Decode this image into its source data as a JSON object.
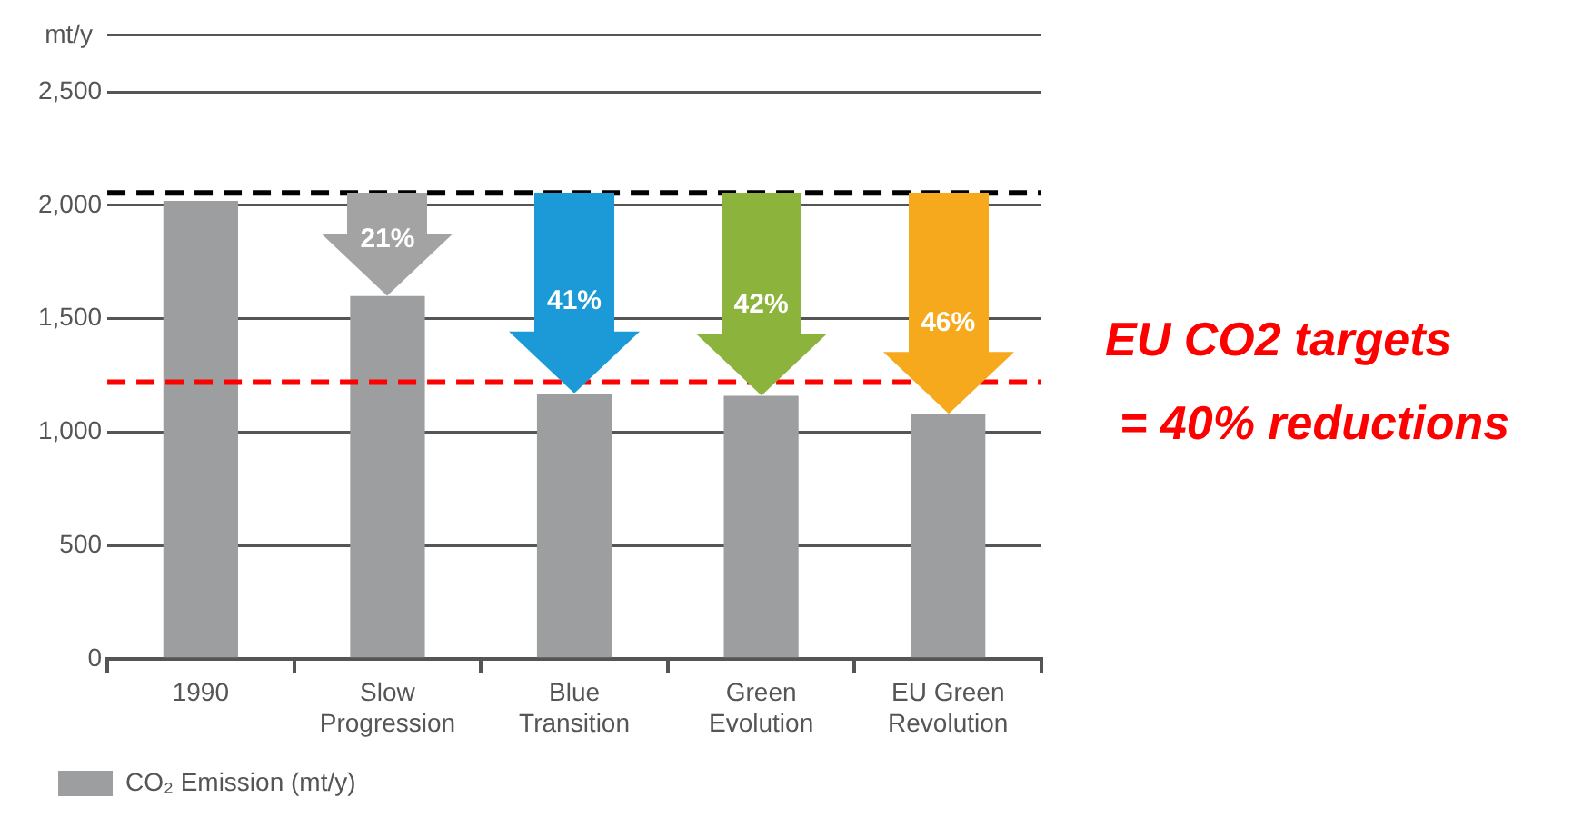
{
  "chart_data": {
    "type": "bar",
    "ylabel": "mt/y",
    "categories": [
      "1990",
      "Slow\nProgression",
      "Blue\nTransition",
      "Green\nEvolution",
      "EU Green\nRevolution"
    ],
    "series": [
      {
        "name": "CO₂ Emission (mt/y)",
        "color": "#9d9ea0",
        "values": [
          2020,
          1600,
          1170,
          1160,
          1080
        ]
      }
    ],
    "ylim": [
      0,
      2750
    ],
    "yticks": [
      0,
      500,
      {
        "value": 1000,
        "label": "1,000"
      },
      {
        "value": 1500,
        "label": "1,500"
      },
      {
        "value": 2000,
        "label": "2,000"
      },
      {
        "value": 2500,
        "label": "2,500"
      },
      {
        "value": 2750,
        "label": null
      }
    ],
    "grid": "y",
    "legend": "bottom left",
    "ref_lines": [
      {
        "axis": "y",
        "value": 2055,
        "color": "#000000",
        "line_style": "dashed"
      },
      {
        "axis": "y",
        "value": 1220,
        "color": "#ff0000",
        "line_style": "dashed"
      }
    ],
    "annotations": [
      {
        "text": "21%",
        "x": "Slow\nProgression",
        "y": 1600
      },
      {
        "text": "41%",
        "x": "Blue\nTransition",
        "y": 1170
      },
      {
        "text": "42%",
        "x": "Green\nEvolution",
        "y": 1160
      },
      {
        "text": "46%",
        "x": "EU Green\nRevolution",
        "y": 1080
      },
      "EU CO2 targets",
      "= 40% reductions"
    ]
  }
}
